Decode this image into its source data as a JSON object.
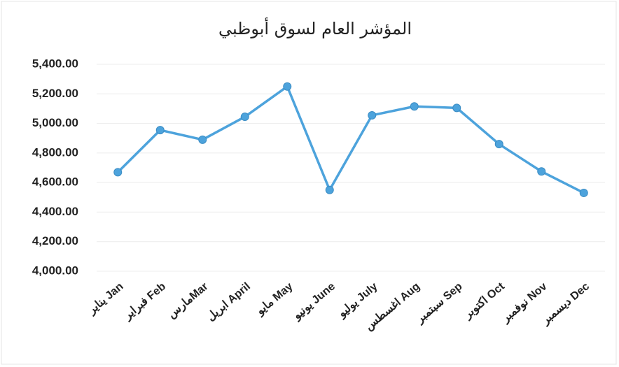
{
  "chart_data": {
    "type": "line",
    "title": "المؤشر العام لسوق أبوظبي",
    "categories": [
      "يناير Jan",
      "فبراير Feb",
      "مارسMar",
      "ابريل April",
      "مايو May",
      "يونيو June",
      "يوليو July",
      "اغسطس Aug",
      "سبتمبر Sep",
      "اكتوبر Oct",
      "نوفمبر Nov",
      "ديسمبر Dec"
    ],
    "series": [
      {
        "name": "المؤشر العام",
        "color": "#4da3dc",
        "values": [
          4670,
          4955,
          4890,
          5045,
          5250,
          4550,
          5055,
          5115,
          5105,
          4860,
          4675,
          4530
        ]
      }
    ],
    "ylim": [
      4000,
      5400
    ],
    "yticks": [
      {
        "value": 4000,
        "label": "4,000.00"
      },
      {
        "value": 4200,
        "label": "4,200.00"
      },
      {
        "value": 4400,
        "label": "4,400.00"
      },
      {
        "value": 4600,
        "label": "4,600.00"
      },
      {
        "value": 4800,
        "label": "4,800.00"
      },
      {
        "value": 5000,
        "label": "5,000.00"
      },
      {
        "value": 5200,
        "label": "5,200.00"
      },
      {
        "value": 5400,
        "label": "5,400.00"
      }
    ],
    "grid": true
  }
}
